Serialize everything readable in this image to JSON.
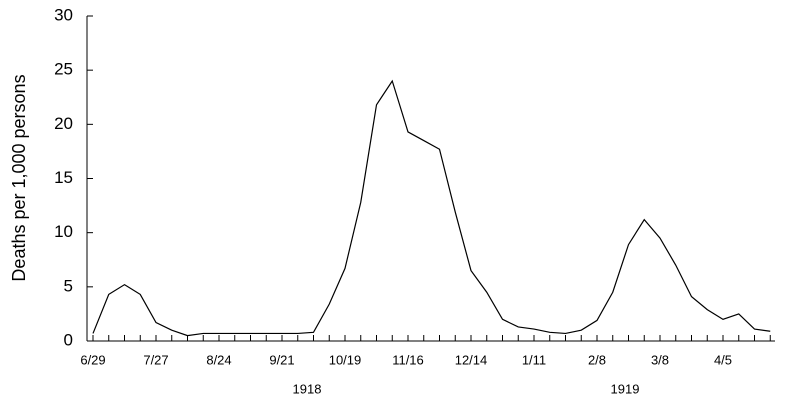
{
  "chart_data": {
    "type": "line",
    "y_label": "Deaths per 1,000 persons",
    "categories": [
      "6/29",
      null,
      null,
      null,
      "7/27",
      null,
      null,
      null,
      "8/24",
      null,
      null,
      null,
      "9/21",
      null,
      null,
      null,
      "10/19",
      null,
      null,
      null,
      "11/16",
      null,
      null,
      null,
      "12/14",
      null,
      null,
      null,
      "1/11",
      null,
      null,
      null,
      "2/8",
      null,
      null,
      null,
      "3/8",
      null,
      null,
      null,
      "4/5",
      null,
      null,
      null
    ],
    "series": [
      {
        "color": "#000000",
        "values": [
          0.7,
          4.3,
          5.2,
          4.3,
          1.7,
          1.0,
          0.5,
          0.7,
          0.7,
          0.7,
          0.7,
          0.7,
          0.7,
          0.7,
          0.8,
          3.4,
          6.7,
          12.8,
          21.8,
          24.0,
          19.3,
          18.5,
          17.7,
          11.9,
          6.5,
          4.5,
          2.0,
          1.3,
          1.1,
          0.8,
          0.7,
          1.0,
          1.9,
          4.5,
          8.9,
          11.2,
          9.5,
          7.0,
          4.1,
          2.9,
          2.0,
          2.5,
          1.1,
          0.9
        ]
      }
    ],
    "annotations": [
      "1918",
      "1919"
    ],
    "ylim": [
      0,
      30
    ],
    "yticks": [
      0,
      5,
      10,
      15,
      20,
      25,
      30
    ],
    "grid": false
  }
}
